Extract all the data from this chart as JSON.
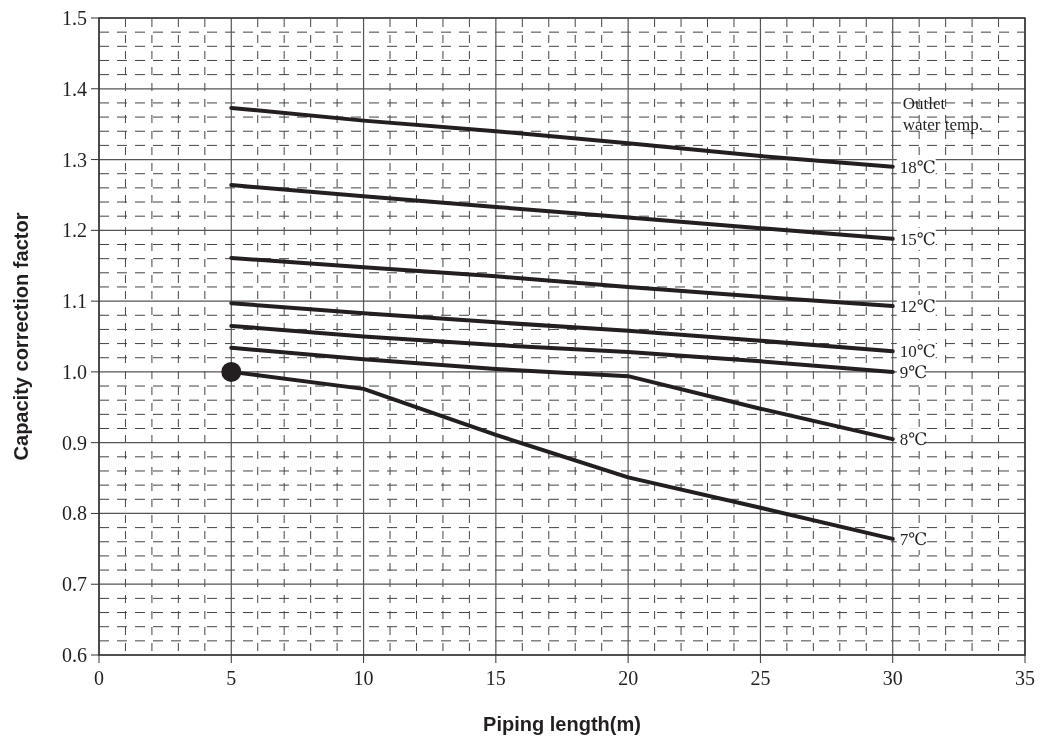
{
  "chart_data": {
    "type": "line",
    "xlabel": "Piping length(m)",
    "ylabel": "Capacity correction factor",
    "x": [
      5,
      10,
      15,
      20,
      25,
      30
    ],
    "series": [
      {
        "name": "18℃",
        "color": "#231f20",
        "values": [
          1.373,
          1.355,
          1.34,
          1.323,
          1.305,
          1.29
        ]
      },
      {
        "name": "15℃",
        "color": "#231f20",
        "values": [
          1.264,
          1.248,
          1.233,
          1.218,
          1.203,
          1.188
        ]
      },
      {
        "name": "12℃",
        "color": "#231f20",
        "values": [
          1.161,
          1.148,
          1.135,
          1.12,
          1.106,
          1.093
        ]
      },
      {
        "name": "10℃",
        "color": "#231f20",
        "values": [
          1.097,
          1.083,
          1.07,
          1.058,
          1.044,
          1.029
        ]
      },
      {
        "name": "9℃",
        "color": "#231f20",
        "values": [
          1.065,
          1.05,
          1.038,
          1.028,
          1.015,
          1.0
        ]
      },
      {
        "name": "8℃",
        "color": "#231f20",
        "values": [
          1.034,
          1.018,
          1.004,
          0.994,
          0.948,
          0.905
        ]
      },
      {
        "name": "7℃",
        "color": "#231f20",
        "values": [
          1.0,
          0.976,
          0.911,
          0.851,
          0.808,
          0.764
        ]
      },
      {
        "type": "scatter",
        "color": "#231f20",
        "marker": "circle",
        "x": [
          5
        ],
        "values": [
          1.0
        ]
      }
    ],
    "annotations": [
      "Outlet\nwater temp."
    ],
    "xlim": [
      0,
      35
    ],
    "xticks": [
      0,
      5,
      10,
      15,
      20,
      25,
      30,
      35
    ],
    "ylim": [
      0.6,
      1.5
    ],
    "yticks": [
      0.6,
      0.7,
      0.8,
      0.9,
      {
        "value": 1.0,
        "label": "1.0"
      },
      1.1,
      1.2,
      1.3,
      1.4,
      1.5
    ],
    "grid": true,
    "marker": "none",
    "line_style": "solid"
  }
}
